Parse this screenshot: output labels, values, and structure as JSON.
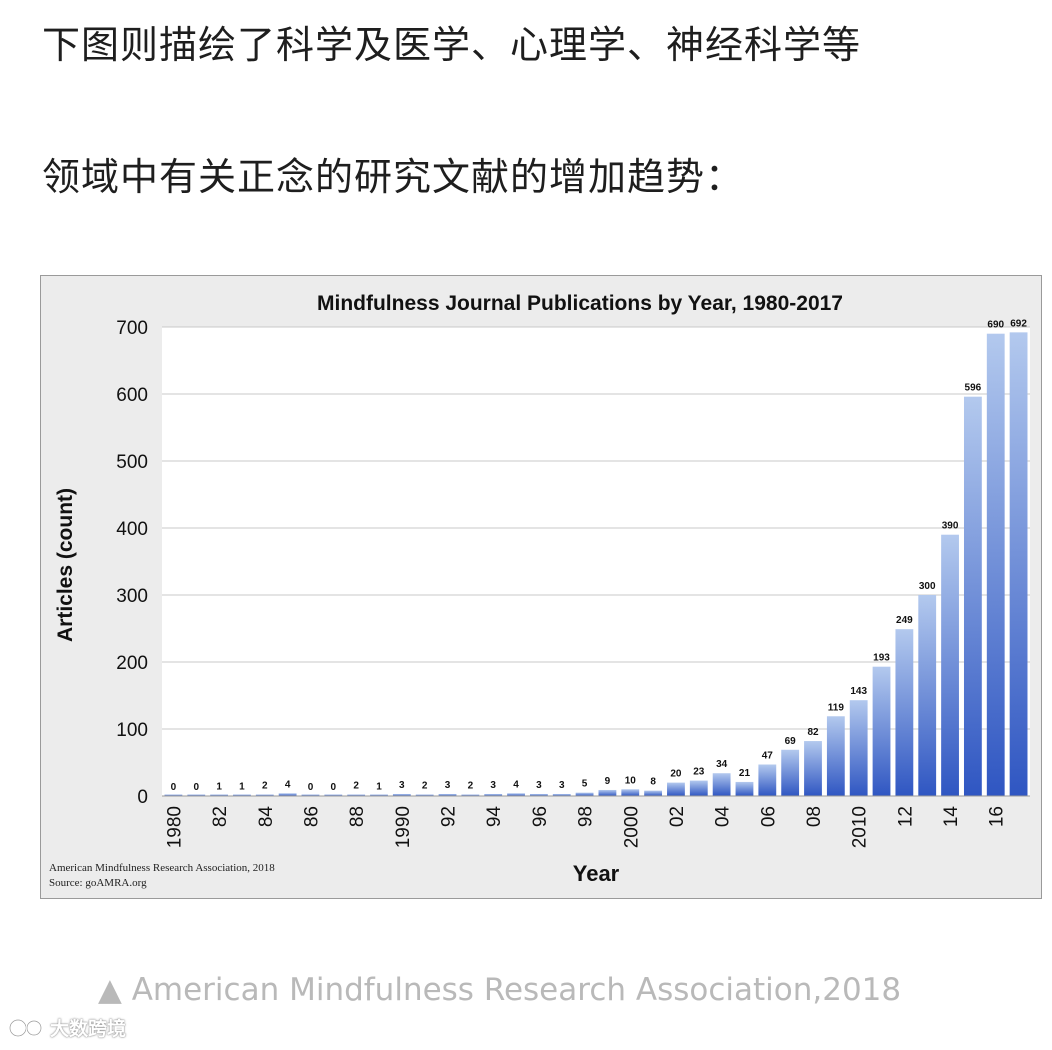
{
  "article": {
    "intro_line1": "下图则描绘了科学及医学、心理学、神经科学等",
    "intro_line2": "领域中有关正念的研究文献的增加趋势："
  },
  "caption": {
    "marker": "▲",
    "text": "American Mindfulness Research Association,2018"
  },
  "watermark": {
    "text": "大数跨境"
  },
  "chart_data": {
    "type": "bar",
    "title": "Mindfulness Journal Publications by Year, 1980-2017",
    "xlabel": "Year",
    "ylabel": "Articles (count)",
    "ylim": [
      0,
      700
    ],
    "yticks": [
      "0",
      "100",
      "200",
      "300",
      "400",
      "500",
      "600",
      "700"
    ],
    "grid": true,
    "categories": [
      "1980",
      "1981",
      "1982",
      "1983",
      "1984",
      "1985",
      "1986",
      "1987",
      "1988",
      "1989",
      "1990",
      "1991",
      "1992",
      "1993",
      "1994",
      "1995",
      "1996",
      "1997",
      "1998",
      "1999",
      "2000",
      "2001",
      "2002",
      "2003",
      "2004",
      "2005",
      "2006",
      "2007",
      "2008",
      "2009",
      "2010",
      "2011",
      "2012",
      "2013",
      "2014",
      "2015",
      "2016",
      "2017"
    ],
    "tick_labels": [
      "1980",
      "",
      "82",
      "",
      "84",
      "",
      "86",
      "",
      "88",
      "",
      "1990",
      "",
      "92",
      "",
      "94",
      "",
      "96",
      "",
      "98",
      "",
      "2000",
      "",
      "02",
      "",
      "04",
      "",
      "06",
      "",
      "08",
      "",
      "2010",
      "",
      "12",
      "",
      "14",
      "",
      "16",
      ""
    ],
    "values": [
      0,
      0,
      1,
      1,
      2,
      4,
      0,
      0,
      2,
      1,
      3,
      2,
      3,
      2,
      3,
      4,
      3,
      3,
      5,
      9,
      10,
      8,
      20,
      23,
      34,
      21,
      47,
      69,
      82,
      119,
      143,
      193,
      249,
      300,
      390,
      596,
      690,
      692
    ],
    "source_line1": "American Mindfulness Research Association, 2018",
    "source_line2": "Source: goAMRA.org",
    "colors": {
      "frame_bg": "#ececec",
      "plot_bg": "#ffffff",
      "grid": "#c8c8c8",
      "bar_top": "#b3c9ee",
      "bar_bottom": "#2f56c2"
    }
  }
}
